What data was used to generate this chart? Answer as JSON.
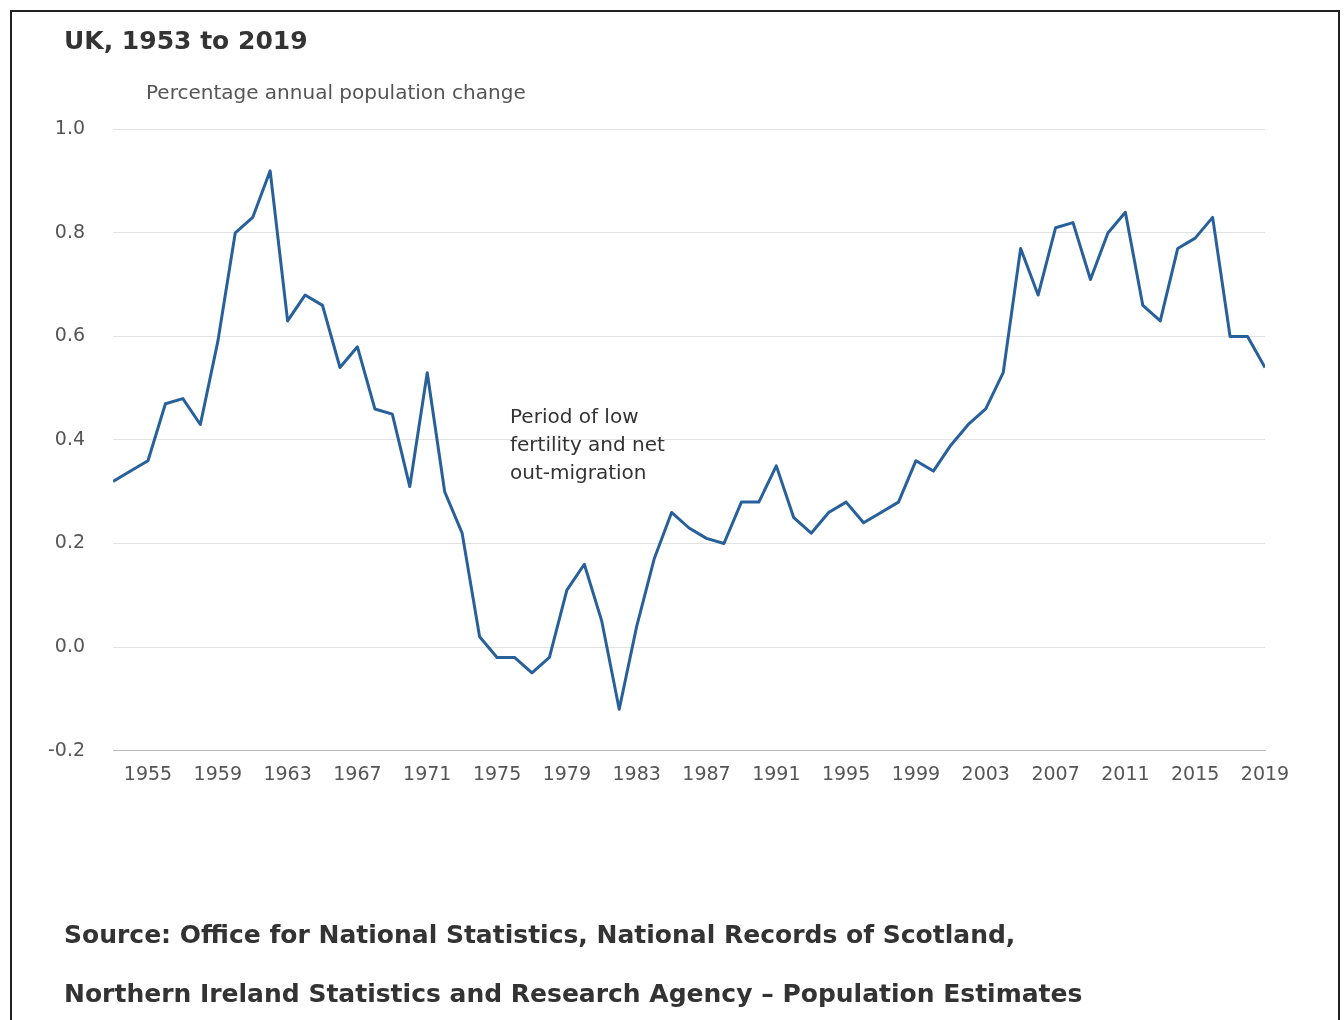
{
  "chart_data": {
    "type": "line",
    "title": "UK, 1953 to 2019",
    "ylabel": "Percentage annual population change",
    "x": [
      1953,
      1954,
      1955,
      1956,
      1957,
      1958,
      1959,
      1960,
      1961,
      1962,
      1963,
      1964,
      1965,
      1966,
      1967,
      1968,
      1969,
      1970,
      1971,
      1972,
      1973,
      1974,
      1975,
      1976,
      1977,
      1978,
      1979,
      1980,
      1981,
      1982,
      1983,
      1984,
      1985,
      1986,
      1987,
      1988,
      1989,
      1990,
      1991,
      1992,
      1993,
      1994,
      1995,
      1996,
      1997,
      1998,
      1999,
      2000,
      2001,
      2002,
      2003,
      2004,
      2005,
      2006,
      2007,
      2008,
      2009,
      2010,
      2011,
      2012,
      2013,
      2014,
      2015,
      2016,
      2017,
      2018,
      2019
    ],
    "series": [
      {
        "color": "#27609a",
        "values": [
          0.32,
          0.34,
          0.36,
          0.47,
          0.48,
          0.43,
          0.59,
          0.8,
          0.83,
          0.92,
          0.63,
          0.68,
          0.66,
          0.54,
          0.58,
          0.46,
          0.45,
          0.31,
          0.53,
          0.3,
          0.22,
          0.02,
          -0.02,
          -0.02,
          -0.05,
          -0.02,
          0.11,
          0.16,
          0.05,
          -0.12,
          0.04,
          0.17,
          0.26,
          0.23,
          0.21,
          0.2,
          0.28,
          0.28,
          0.35,
          0.25,
          0.22,
          0.26,
          0.28,
          0.24,
          0.26,
          0.28,
          0.36,
          0.34,
          0.39,
          0.43,
          0.46,
          0.53,
          0.77,
          0.68,
          0.81,
          0.82,
          0.71,
          0.8,
          0.84,
          0.66,
          0.63,
          0.77,
          0.79,
          0.83,
          0.6,
          0.6,
          0.54
        ]
      }
    ],
    "xlim": [
      1953,
      2019
    ],
    "xticks": [
      1955,
      1959,
      1963,
      1967,
      1971,
      1975,
      1979,
      1983,
      1987,
      1991,
      1995,
      1999,
      2003,
      2007,
      2011,
      2015,
      2019
    ],
    "ylim": [
      -0.2,
      1.0
    ],
    "yticks": [
      {
        "value": -0.2,
        "label": "-0.2"
      },
      {
        "value": 0,
        "label": "0.0"
      },
      {
        "value": 0.2,
        "label": "0.2"
      },
      {
        "value": 0.4,
        "label": "0.4"
      },
      {
        "value": 0.6,
        "label": "0.6"
      },
      {
        "value": 0.8,
        "label": "0.8"
      },
      {
        "value": 1.0,
        "label": "1.0"
      }
    ],
    "grid": "y",
    "legend": false,
    "marker": "none",
    "line_style": "solid",
    "annotations": [
      "Period of low\nfertility and net\nout-migration",
      "Source: Office for National Statistics, National Records of Scotland,\nNorthern Ireland Statistics and Research Agency – Population Estimates"
    ]
  }
}
